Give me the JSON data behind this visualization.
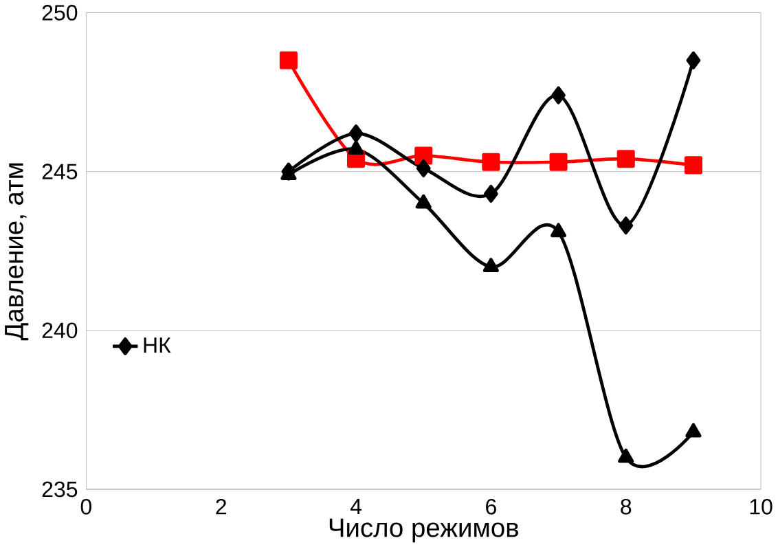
{
  "chart_data": {
    "type": "line",
    "xlabel": "Число режимов",
    "ylabel": "Давление, атм",
    "x": [
      3,
      4,
      5,
      6,
      7,
      8,
      9
    ],
    "series": [
      {
        "name": "НК",
        "color": "#000000",
        "marker": "diamond",
        "values": [
          245.0,
          246.2,
          245.1,
          244.3,
          247.4,
          243.3,
          248.5
        ]
      },
      {
        "color": "#000000",
        "marker": "triangle",
        "values": [
          244.9,
          245.7,
          244.0,
          242.0,
          243.1,
          236.0,
          236.8
        ]
      },
      {
        "color": "#ff0000",
        "marker": "square",
        "values": [
          248.5,
          245.4,
          245.5,
          245.3,
          245.3,
          245.4,
          245.2
        ]
      }
    ],
    "xlim": [
      0,
      10
    ],
    "xticks": [
      0,
      2,
      4,
      6,
      8,
      10
    ],
    "ylim": [
      235,
      250
    ],
    "yticks": [
      235,
      240,
      245,
      250
    ],
    "grid": "y",
    "legend": "left"
  }
}
